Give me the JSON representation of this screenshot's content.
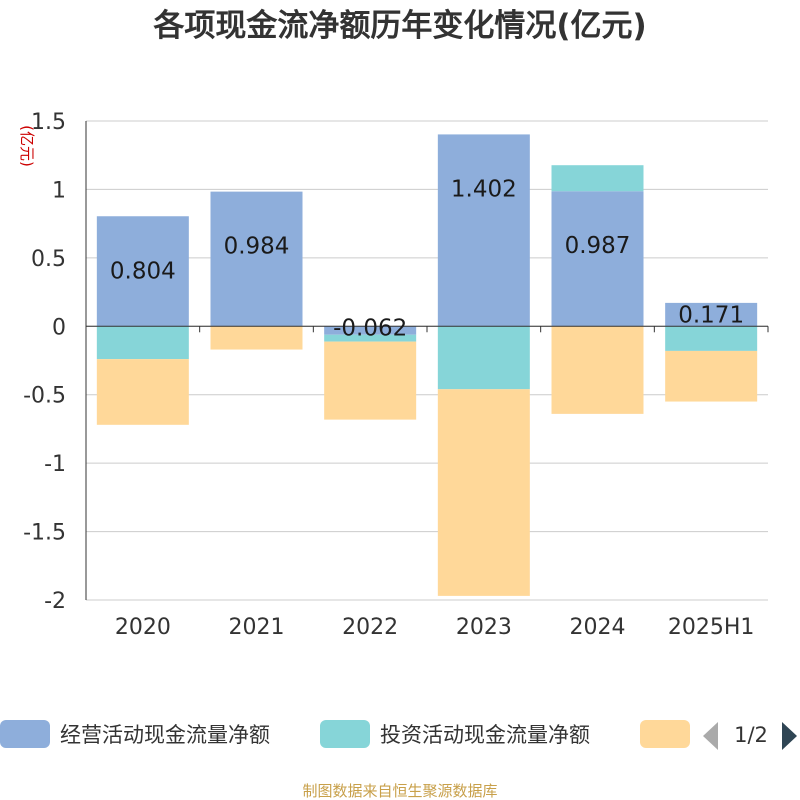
{
  "chart_data": {
    "type": "bar",
    "stacked": true,
    "title": "各项现金流净额历年变化情况(亿元)",
    "ylabel": "(亿元)",
    "categories": [
      "2020",
      "2021",
      "2022",
      "2023",
      "2024",
      "2025H1"
    ],
    "ylim": [
      -2,
      1.5
    ],
    "yticks": [
      "1.5",
      "1",
      "0.5",
      "0",
      "-0.5",
      "-1",
      "-1.5",
      "-2"
    ],
    "grid": true,
    "series": [
      {
        "name": "经营活动现金流量净额",
        "color": "#8eaedb",
        "values": [
          0.804,
          0.984,
          -0.062,
          1.402,
          0.987,
          0.171
        ],
        "labels": [
          "0.804",
          "0.984",
          "-0.062",
          "1.402",
          "0.987",
          "0.171"
        ]
      },
      {
        "name": "投资活动现金流量净额",
        "color": "#86d5d8",
        "values": [
          -0.24,
          0,
          -0.05,
          -0.46,
          0.19,
          -0.18
        ]
      },
      {
        "name": "",
        "color": "#ffd899",
        "values": [
          -0.48,
          -0.17,
          -0.57,
          -1.51,
          -0.64,
          -0.37
        ]
      }
    ],
    "legend": {
      "position": "bottom",
      "page": "1/2"
    }
  },
  "footer": {
    "source": "制图数据来自恒生聚源数据库"
  }
}
